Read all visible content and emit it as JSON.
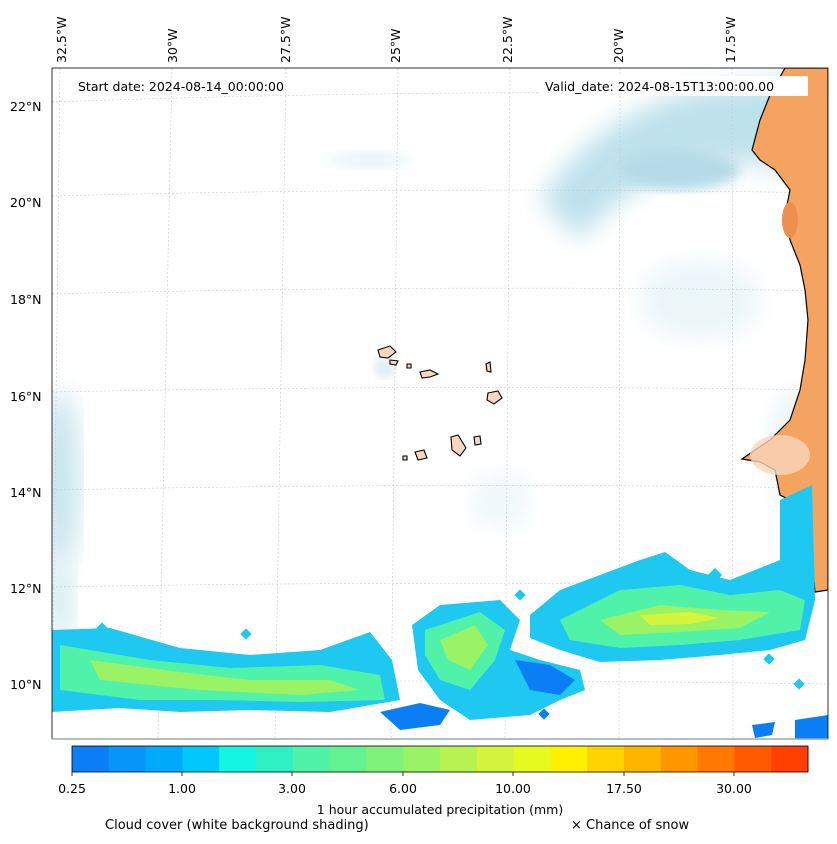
{
  "header": {
    "start_date": "Start date: 2024-08-14_00:00:00",
    "valid_date": "Valid_date: 2024-08-15T13:00:00.00"
  },
  "axes": {
    "lon_labels": [
      "32.5°W",
      "30°W",
      "27.5°W",
      "25°W",
      "22.5°W",
      "20°W",
      "17.5°W"
    ],
    "lat_labels": [
      "22°N",
      "20°N",
      "18°N",
      "16°N",
      "14°N",
      "12°N",
      "10°N"
    ]
  },
  "colorbar": {
    "tick_labels": [
      "0.25",
      "1.00",
      "3.00",
      "6.00",
      "10.00",
      "17.50",
      "30.00"
    ],
    "colors": [
      "#0a7ff5",
      "#0596f8",
      "#00aafa",
      "#00c8fa",
      "#14f5e4",
      "#2ff0c2",
      "#4ff2a8",
      "#63f291",
      "#7ef27a",
      "#9af265",
      "#b7f250",
      "#d3f53d",
      "#e6fa20",
      "#fff000",
      "#ffd200",
      "#ffb400",
      "#ff9600",
      "#ff7800",
      "#ff5a00",
      "#ff4000"
    ],
    "label": "1 hour accumulated precipitation (mm)"
  },
  "legend": {
    "cloud_cover": "Cloud cover (white background shading)",
    "snow": "× Chance of snow"
  },
  "colors": {
    "land": "#f4a460",
    "cloud": "#a8d8e6",
    "coast": "#000000"
  }
}
